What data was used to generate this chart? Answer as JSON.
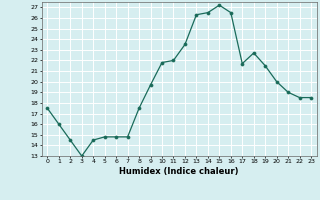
{
  "x": [
    0,
    1,
    2,
    3,
    4,
    5,
    6,
    7,
    8,
    9,
    10,
    11,
    12,
    13,
    14,
    15,
    16,
    17,
    18,
    19,
    20,
    21,
    22,
    23
  ],
  "y": [
    17.5,
    16.0,
    14.5,
    13.0,
    14.5,
    14.8,
    14.8,
    14.8,
    17.5,
    19.7,
    21.8,
    22.0,
    23.5,
    26.3,
    26.5,
    27.2,
    26.5,
    21.7,
    22.7,
    21.5,
    20.0,
    19.0,
    18.5,
    18.5
  ],
  "xlim": [
    -0.5,
    23.5
  ],
  "ylim": [
    13,
    27.5
  ],
  "yticks": [
    13,
    14,
    15,
    16,
    17,
    18,
    19,
    20,
    21,
    22,
    23,
    24,
    25,
    26,
    27
  ],
  "xticks": [
    0,
    1,
    2,
    3,
    4,
    5,
    6,
    7,
    8,
    9,
    10,
    11,
    12,
    13,
    14,
    15,
    16,
    17,
    18,
    19,
    20,
    21,
    22,
    23
  ],
  "xlabel": "Humidex (Indice chaleur)",
  "line_color": "#1a6b5a",
  "marker_color": "#1a6b5a",
  "bg_color": "#d6eef0",
  "grid_color": "#ffffff"
}
